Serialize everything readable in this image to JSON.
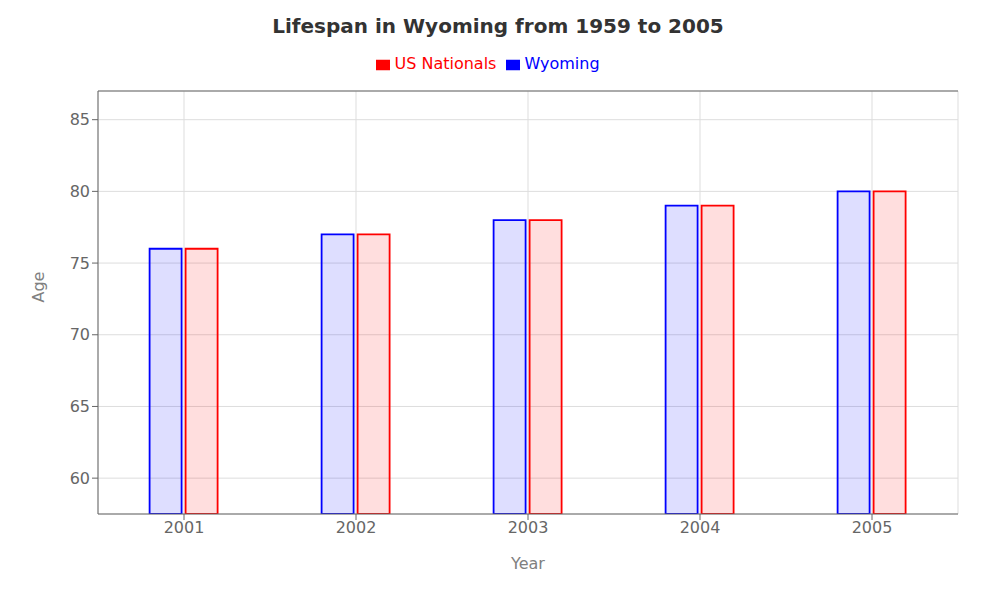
{
  "chart_data": {
    "type": "bar",
    "title": "Lifespan in Wyoming from 1959 to 2005",
    "xlabel": "Year",
    "ylabel": "Age",
    "categories": [
      "2001",
      "2002",
      "2003",
      "2004",
      "2005"
    ],
    "series": [
      {
        "name": "Wyoming",
        "color": "#0000ff",
        "values": [
          76,
          77,
          78,
          79,
          80
        ]
      },
      {
        "name": "US Nationals",
        "color": "#ff0000",
        "values": [
          76,
          77,
          78,
          79,
          80
        ]
      }
    ],
    "ylim": [
      57.5,
      87
    ],
    "yticks": [
      60,
      65,
      70,
      75,
      80,
      85
    ],
    "grid": true,
    "legend": "top"
  }
}
